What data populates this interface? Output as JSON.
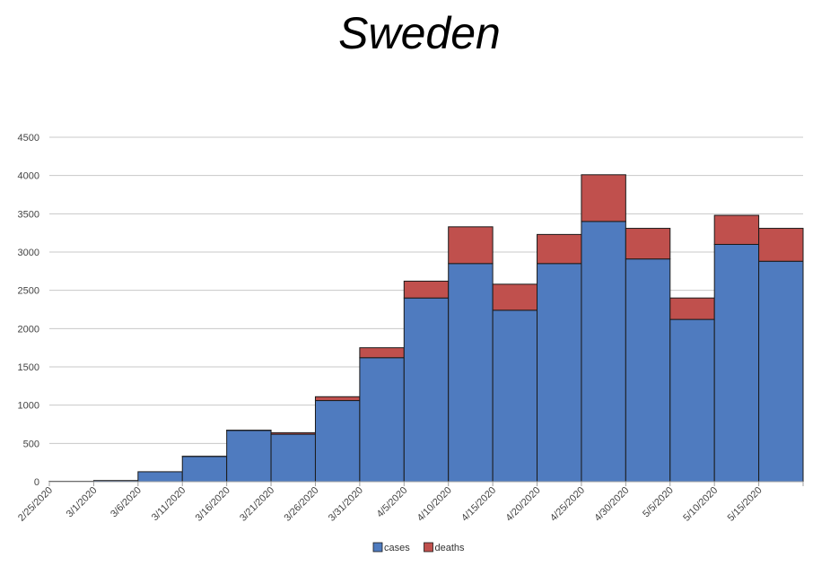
{
  "chart_data": {
    "type": "bar",
    "stacked": true,
    "title": "Sweden",
    "xlabel": "",
    "ylabel": "",
    "ylim": [
      0,
      4500
    ],
    "yticks": [
      0,
      500,
      1000,
      1500,
      2000,
      2500,
      3000,
      3500,
      4000,
      4500
    ],
    "grid": true,
    "legend_position": "bottom-center",
    "categories": [
      "2/25/2020",
      "3/1/2020",
      "3/6/2020",
      "3/11/2020",
      "3/16/2020",
      "3/21/2020",
      "3/26/2020",
      "3/31/2020",
      "4/5/2020",
      "4/10/2020",
      "4/15/2020",
      "4/20/2020",
      "4/25/2020",
      "4/30/2020",
      "5/5/2020",
      "5/10/2020",
      "5/15/2020"
    ],
    "series": [
      {
        "name": "cases",
        "color": "#4F7BBF",
        "values": [
          5,
          15,
          130,
          330,
          670,
          620,
          1060,
          1620,
          2400,
          2850,
          2240,
          2850,
          3400,
          2910,
          2120,
          3100,
          2880
        ]
      },
      {
        "name": "deaths",
        "color": "#C0504D",
        "values": [
          0,
          0,
          0,
          2,
          3,
          20,
          50,
          130,
          220,
          480,
          340,
          380,
          610,
          400,
          280,
          380,
          430
        ]
      }
    ]
  }
}
